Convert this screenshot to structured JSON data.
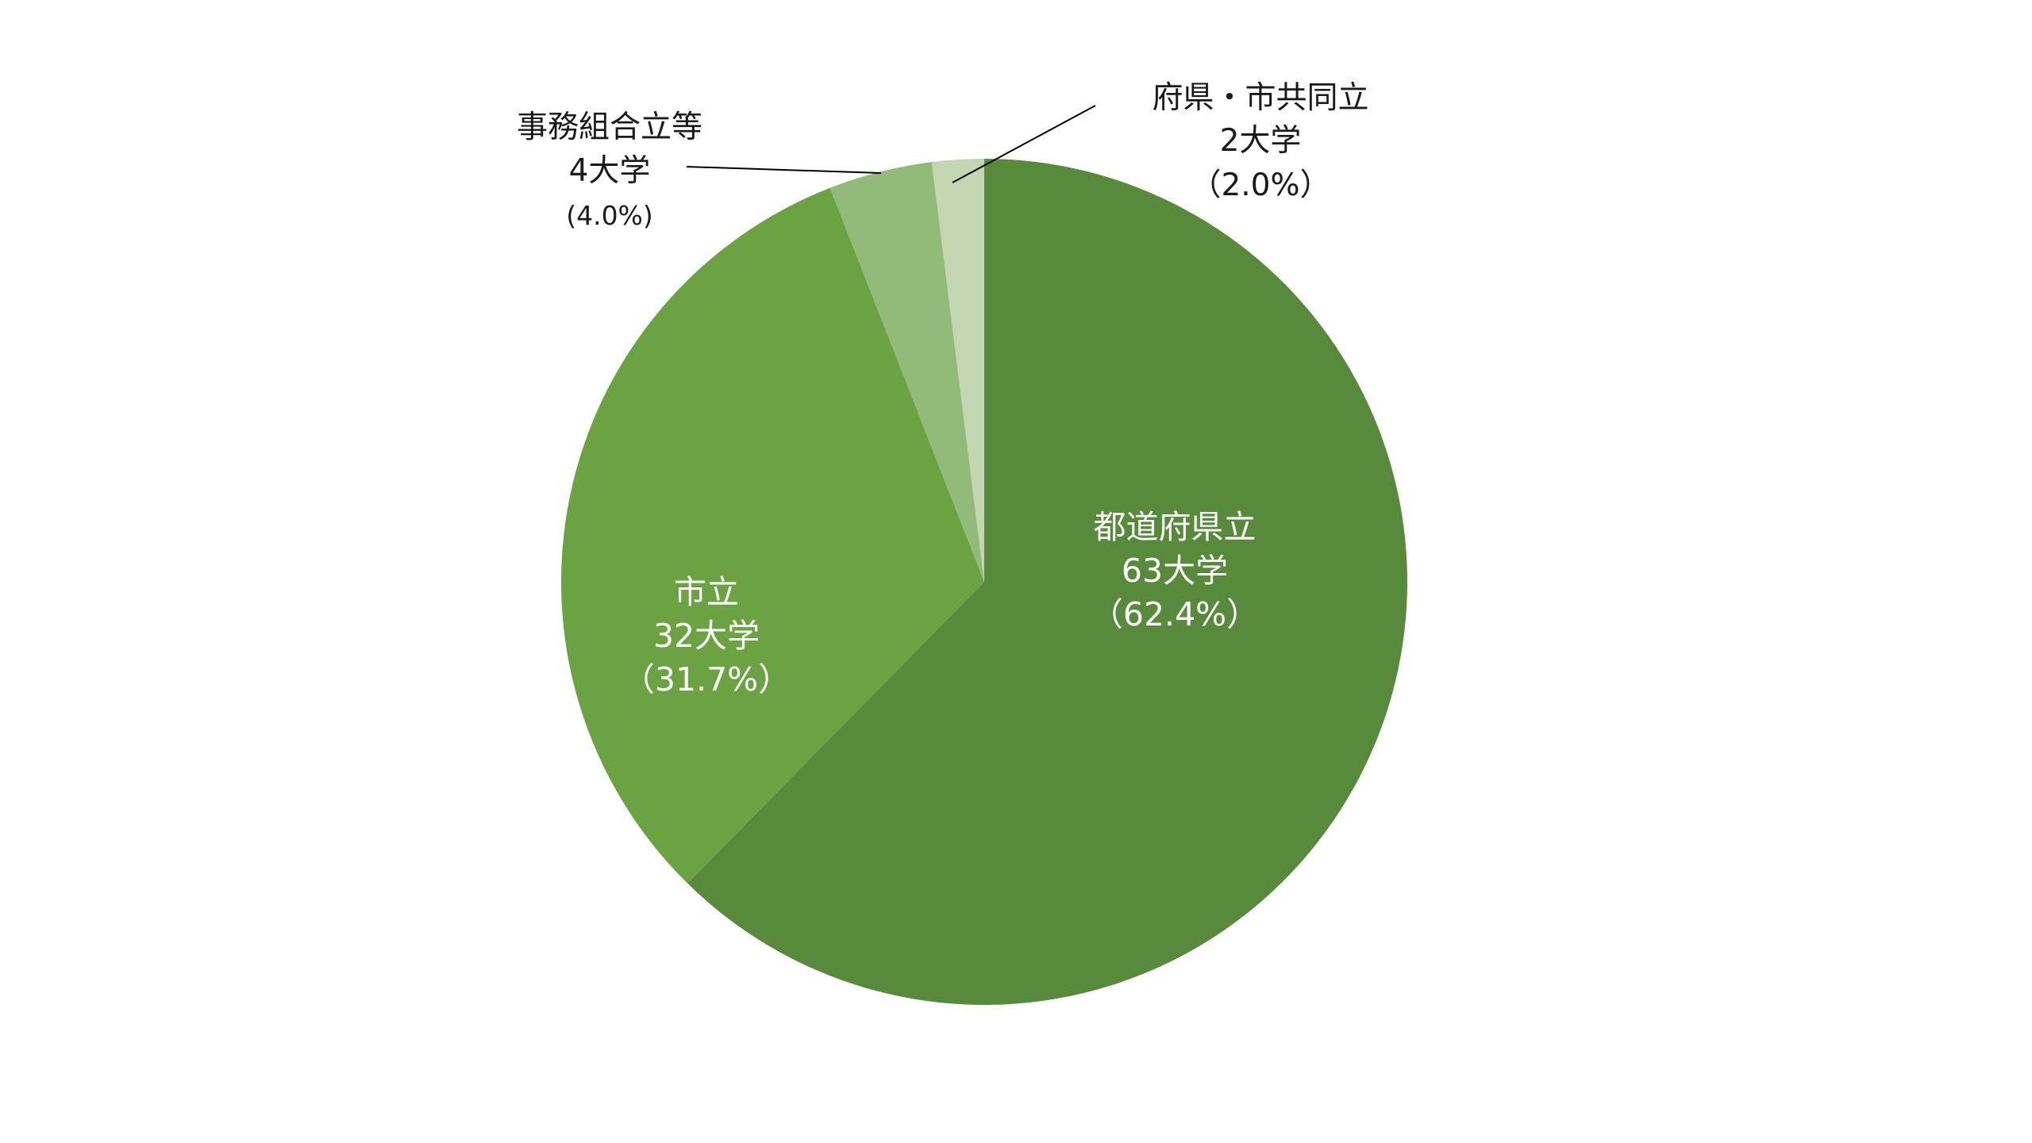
{
  "chart_data": {
    "type": "pie",
    "title": "",
    "start_angle": "12 o'clock",
    "direction": "clockwise",
    "slices": [
      {
        "category": "都道府県立",
        "count_label": "63大学",
        "percent_label": "（62.4%）",
        "value": 63,
        "percent": 62.4,
        "color": "#578a3a",
        "label_position": "inside"
      },
      {
        "category": "市立",
        "count_label": "32大学",
        "percent_label": "（31.7%）",
        "value": 32,
        "percent": 31.7,
        "color": "#6ba343",
        "label_position": "inside"
      },
      {
        "category": "事務組合立等",
        "count_label": "4大学",
        "percent_label": "(4.0%)",
        "value": 4,
        "percent": 4.0,
        "color": "#92ba78",
        "label_position": "outside-left"
      },
      {
        "category": "府県・市共同立",
        "count_label": "2大学",
        "percent_label": "（2.0%）",
        "value": 2,
        "percent": 2.0,
        "color": "#c1d6b1",
        "label_position": "outside-right"
      }
    ]
  }
}
